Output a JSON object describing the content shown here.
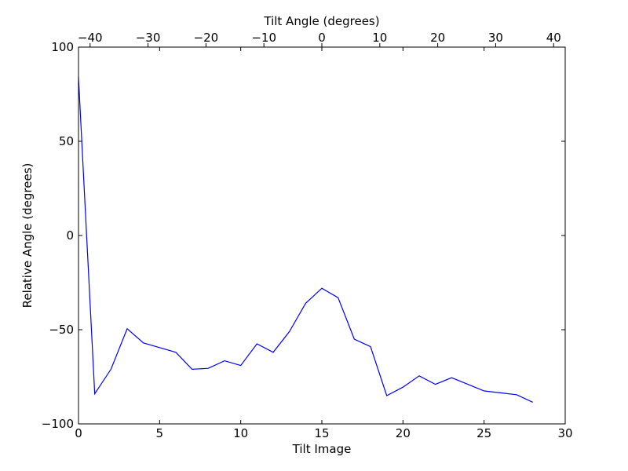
{
  "chart_data": {
    "type": "line",
    "xlabel": "Tilt Image",
    "ylabel": "Relative Angle (degrees)",
    "x2label": "Tilt Angle (degrees)",
    "xlim": [
      0,
      30
    ],
    "ylim": [
      -100,
      100
    ],
    "x2lim": [
      -42,
      42
    ],
    "xticks": [
      0,
      5,
      10,
      15,
      20,
      25,
      30
    ],
    "yticks": [
      -100,
      -50,
      0,
      50,
      100
    ],
    "x2ticks": [
      -40,
      -30,
      -20,
      -10,
      0,
      10,
      20,
      30,
      40
    ],
    "xtick_labels": [
      "0",
      "5",
      "10",
      "15",
      "20",
      "25",
      "30"
    ],
    "ytick_labels": [
      "−100",
      "−50",
      "0",
      "50",
      "100"
    ],
    "x2tick_labels": [
      "−40",
      "−30",
      "−20",
      "−10",
      "0",
      "10",
      "20",
      "30",
      "40"
    ],
    "line_color": "#0000ff",
    "series": [
      {
        "x": [
          0,
          1,
          2,
          3,
          4,
          5,
          6,
          7,
          8,
          9,
          10,
          11,
          12,
          13,
          14,
          15,
          16,
          17,
          18,
          19,
          20,
          21,
          22,
          23,
          24,
          25,
          26,
          27,
          28
        ],
        "values": [
          84,
          -84,
          -71,
          -49.5,
          -57,
          -59.5,
          -62,
          -71,
          -70.5,
          -66.5,
          -69,
          -57.5,
          -62,
          -51,
          -36,
          -28,
          -33,
          -55,
          -59,
          -85,
          -80.5,
          -74.5,
          -79,
          -75.5,
          -79,
          -82.5,
          -83.5,
          -84.5,
          -88.5
        ]
      }
    ]
  }
}
